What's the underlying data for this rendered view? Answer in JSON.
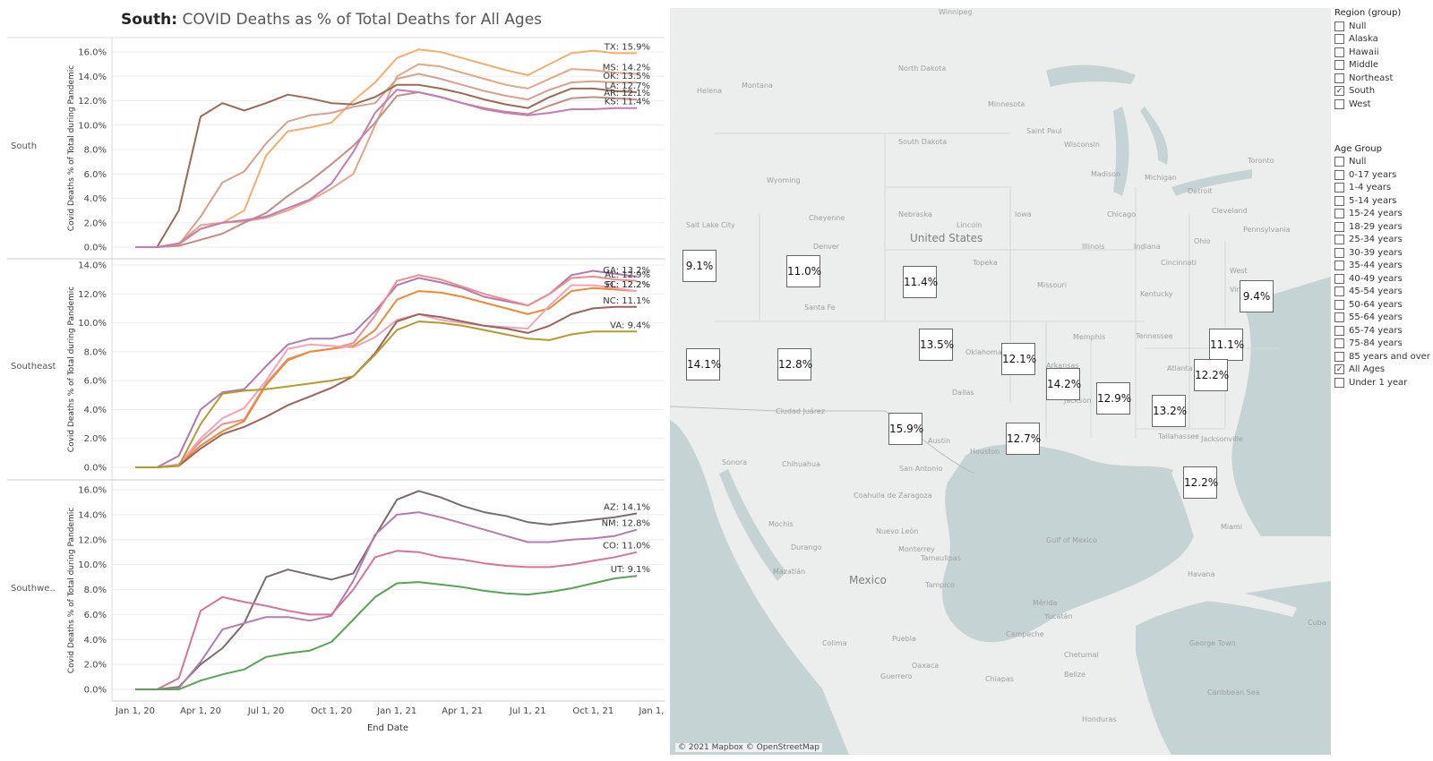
{
  "title": {
    "bold": "South:",
    "rest": "COVID Deaths as % of Total Deaths for All Ages"
  },
  "chart_data": [
    {
      "type": "line",
      "panel": "South",
      "ylabel": "Covid Deaths % of Total during Pandemic",
      "ylim": [
        0,
        16
      ],
      "yticks": [
        0,
        2,
        4,
        6,
        8,
        10,
        12,
        14,
        16
      ],
      "x": [
        "2020-01",
        "2020-02",
        "2020-03",
        "2020-04",
        "2020-05",
        "2020-06",
        "2020-07",
        "2020-08",
        "2020-09",
        "2020-10",
        "2020-11",
        "2020-12",
        "2021-01",
        "2021-02",
        "2021-03",
        "2021-04",
        "2021-05",
        "2021-06",
        "2021-07",
        "2021-08",
        "2021-09",
        "2021-10",
        "2021-11",
        "2021-12"
      ],
      "series": [
        {
          "name": "TX",
          "label": "TX: 15.9%",
          "color": "#f5ae6b",
          "values": [
            0,
            0,
            0.2,
            1.5,
            2.0,
            3.0,
            7.5,
            9.5,
            9.8,
            10.2,
            12.0,
            13.5,
            15.5,
            16.2,
            16.0,
            15.5,
            15.0,
            14.5,
            14.1,
            15.0,
            15.9,
            16.1,
            15.9,
            15.9
          ]
        },
        {
          "name": "MS",
          "label": "MS: 14.2%",
          "color": "#e8a585",
          "values": [
            0,
            0,
            0.3,
            1.8,
            2.0,
            2.1,
            2.4,
            3.0,
            3.8,
            4.8,
            6.0,
            10.0,
            14.0,
            15.0,
            14.8,
            14.3,
            13.8,
            13.3,
            13.0,
            13.8,
            14.6,
            14.5,
            14.3,
            14.2
          ]
        },
        {
          "name": "OK",
          "label": "OK: 13.5%",
          "color": "#d9a08d",
          "values": [
            0,
            0,
            0.2,
            2.5,
            5.3,
            6.2,
            8.5,
            10.3,
            10.8,
            11.0,
            11.5,
            11.8,
            13.8,
            14.2,
            13.8,
            13.3,
            12.8,
            12.4,
            12.1,
            12.9,
            13.5,
            13.6,
            13.5,
            13.5
          ]
        },
        {
          "name": "LA",
          "label": "LA: 12.7%",
          "color": "#9b6a55",
          "values": [
            0,
            0,
            3.0,
            10.7,
            11.8,
            11.2,
            11.8,
            12.5,
            12.2,
            11.8,
            11.7,
            12.3,
            13.3,
            13.3,
            13.0,
            12.6,
            12.1,
            11.7,
            11.4,
            12.3,
            13.0,
            13.0,
            12.8,
            12.7
          ]
        },
        {
          "name": "AR",
          "label": "AR: 12.1%",
          "color": "#c28d84",
          "values": [
            0,
            0,
            0.1,
            0.6,
            1.1,
            2.0,
            2.8,
            4.2,
            5.4,
            6.8,
            8.3,
            10.2,
            12.4,
            12.7,
            12.3,
            11.8,
            11.4,
            11.1,
            10.9,
            11.6,
            12.2,
            12.3,
            12.2,
            12.1
          ]
        },
        {
          "name": "KS",
          "label": "KS: 11.4%",
          "color": "#c77ab5",
          "values": [
            0,
            0,
            0.3,
            1.5,
            2.0,
            2.2,
            2.5,
            3.2,
            3.9,
            5.2,
            7.8,
            11.0,
            12.9,
            12.7,
            12.3,
            11.8,
            11.3,
            11.0,
            10.8,
            11.0,
            11.3,
            11.3,
            11.4,
            11.4
          ]
        }
      ]
    },
    {
      "type": "line",
      "panel": "Southeast",
      "ylabel": "Covid Deaths % of Total during Pandemic",
      "ylim": [
        0,
        14
      ],
      "yticks": [
        0,
        2,
        4,
        6,
        8,
        10,
        12,
        14
      ],
      "x": [
        "2020-01",
        "2020-02",
        "2020-03",
        "2020-04",
        "2020-05",
        "2020-06",
        "2020-07",
        "2020-08",
        "2020-09",
        "2020-10",
        "2020-11",
        "2020-12",
        "2021-01",
        "2021-02",
        "2021-03",
        "2021-04",
        "2021-05",
        "2021-06",
        "2021-07",
        "2021-08",
        "2021-09",
        "2021-10",
        "2021-11",
        "2021-12"
      ],
      "series": [
        {
          "name": "GA",
          "label": "GA: 13.2%",
          "color": "#b279b1",
          "values": [
            0,
            0,
            0.8,
            4.0,
            5.2,
            5.4,
            7.0,
            8.5,
            8.9,
            8.9,
            9.3,
            10.8,
            12.6,
            13.1,
            12.8,
            12.4,
            11.8,
            11.5,
            11.2,
            12.0,
            13.3,
            13.6,
            13.4,
            13.2
          ]
        },
        {
          "name": "AL",
          "label": "AL: 12.9%",
          "color": "#f28a8a",
          "values": [
            0,
            0,
            0.2,
            1.8,
            3.0,
            3.3,
            5.8,
            7.5,
            8.0,
            8.2,
            8.6,
            10.5,
            12.9,
            13.3,
            13.0,
            12.5,
            12.0,
            11.6,
            11.2,
            12.0,
            13.1,
            13.2,
            13.0,
            12.9
          ]
        },
        {
          "name": "SC",
          "label": "SC: 12.2%",
          "color": "#ee8a31",
          "values": [
            0,
            0,
            0.2,
            1.5,
            2.5,
            3.2,
            5.7,
            7.4,
            8.0,
            8.2,
            8.4,
            9.5,
            11.6,
            12.2,
            12.1,
            11.8,
            11.4,
            11.0,
            10.6,
            11.0,
            12.2,
            12.4,
            12.3,
            12.2
          ]
        },
        {
          "name": "FL",
          "label": "FL: 12.2%",
          "color": "#f3a3b8",
          "values": [
            0,
            0,
            0.2,
            2.0,
            3.4,
            4.1,
            6.0,
            8.2,
            8.5,
            8.4,
            8.3,
            9.0,
            10.2,
            10.6,
            10.2,
            10.0,
            9.8,
            9.7,
            9.6,
            11.2,
            12.6,
            12.6,
            12.4,
            12.2
          ]
        },
        {
          "name": "NC",
          "label": "NC: 11.1%",
          "color": "#9e6358",
          "values": [
            0,
            0,
            0.1,
            1.3,
            2.3,
            2.8,
            3.5,
            4.3,
            4.9,
            5.5,
            6.3,
            7.9,
            10.1,
            10.6,
            10.4,
            10.1,
            9.8,
            9.6,
            9.3,
            9.8,
            10.6,
            11.0,
            11.1,
            11.1
          ]
        },
        {
          "name": "VA",
          "label": "VA: 9.4%",
          "color": "#b59a2c",
          "values": [
            0,
            0,
            0.1,
            3.0,
            5.1,
            5.3,
            5.4,
            5.6,
            5.8,
            6.0,
            6.3,
            7.8,
            9.5,
            10.1,
            10.0,
            9.8,
            9.5,
            9.2,
            8.9,
            8.8,
            9.2,
            9.4,
            9.4,
            9.4
          ]
        }
      ]
    },
    {
      "type": "line",
      "panel": "Southwe..",
      "ylabel": "Covid Deaths % of Total during Pandemic",
      "ylim": [
        0,
        16
      ],
      "yticks": [
        0,
        2,
        4,
        6,
        8,
        10,
        12,
        14,
        16
      ],
      "xlabel": "End Date",
      "xticks": [
        "Jan 1, 20",
        "Apr 1, 20",
        "Jul 1, 20",
        "Oct 1, 20",
        "Jan 1, 21",
        "Apr 1, 21",
        "Jul 1, 21",
        "Oct 1, 21",
        "Jan 1, 22"
      ],
      "x": [
        "2020-01",
        "2020-02",
        "2020-03",
        "2020-04",
        "2020-05",
        "2020-06",
        "2020-07",
        "2020-08",
        "2020-09",
        "2020-10",
        "2020-11",
        "2020-12",
        "2021-01",
        "2021-02",
        "2021-03",
        "2021-04",
        "2021-05",
        "2021-06",
        "2021-07",
        "2021-08",
        "2021-09",
        "2021-10",
        "2021-11",
        "2021-12"
      ],
      "series": [
        {
          "name": "AZ",
          "label": "AZ: 14.1%",
          "color": "#7a6b6e",
          "values": [
            0,
            0,
            0.2,
            2.0,
            3.3,
            5.3,
            9.0,
            9.6,
            9.2,
            8.8,
            9.3,
            12.3,
            15.2,
            15.9,
            15.4,
            14.7,
            14.2,
            13.9,
            13.4,
            13.2,
            13.4,
            13.6,
            13.8,
            14.1
          ]
        },
        {
          "name": "NM",
          "label": "NM: 12.8%",
          "color": "#b57ab2",
          "values": [
            0,
            0,
            0.1,
            2.2,
            4.8,
            5.3,
            5.8,
            5.8,
            5.5,
            5.9,
            8.7,
            12.4,
            14.0,
            14.2,
            13.8,
            13.3,
            12.8,
            12.3,
            11.8,
            11.8,
            12.0,
            12.1,
            12.3,
            12.8
          ]
        },
        {
          "name": "CO",
          "label": "CO: 11.0%",
          "color": "#d97394",
          "values": [
            0,
            0,
            0.9,
            6.3,
            7.4,
            7.0,
            6.7,
            6.3,
            6.0,
            6.0,
            8.0,
            10.6,
            11.1,
            11.0,
            10.6,
            10.4,
            10.1,
            9.9,
            9.8,
            9.8,
            10.0,
            10.3,
            10.6,
            11.0
          ]
        },
        {
          "name": "UT",
          "label": "UT: 9.1%",
          "color": "#56a552",
          "values": [
            0,
            0,
            0.0,
            0.7,
            1.2,
            1.6,
            2.6,
            2.9,
            3.1,
            3.8,
            5.6,
            7.4,
            8.5,
            8.6,
            8.4,
            8.2,
            7.9,
            7.7,
            7.6,
            7.8,
            8.1,
            8.5,
            8.9,
            9.1
          ]
        }
      ]
    }
  ],
  "map": {
    "credit": "© 2021 Mapbox © OpenStreetMap",
    "labels": [
      "9.1%",
      "11.0%",
      "11.4%",
      "9.4%",
      "14.1%",
      "12.8%",
      "13.5%",
      "12.1%",
      "14.2%",
      "12.9%",
      "13.2%",
      "11.1%",
      "12.2%",
      "15.9%",
      "12.7%",
      "12.2%"
    ],
    "places": [
      "Winnipeg",
      "Helena",
      "Montana",
      "North Dakota",
      "Minnesota",
      "Saint Paul",
      "Wisconsin",
      "Michigan",
      "Toronto",
      "South Dakota",
      "Madison",
      "Wyoming",
      "Detroit",
      "Cleveland",
      "Chicago",
      "Ohio",
      "Salt Lake City",
      "Cheyenne",
      "Nebraska",
      "Lincoln",
      "Iowa",
      "Illinois",
      "Indiana",
      "Pennsylvania",
      "United States",
      "Denver",
      "Topeka",
      "Cincinnati",
      "West",
      "Missouri",
      "Kentucky",
      "Virginia",
      "Tennessee",
      "Santa Fe",
      "Oklahoma",
      "Memphis",
      "Atlanta",
      "Arkansas",
      "Dallas",
      "Jackson",
      "Ciudad Juárez",
      "Austin",
      "Houston",
      "Tallahassee",
      "Jacksonville",
      "San Antonio",
      "Sonora",
      "Chihuahua",
      "Coahuila de Zaragoza",
      "Nuevo León",
      "Mochis",
      "Durango",
      "Tamaulipas",
      "Mazatlán",
      "Mexico",
      "Gulf of Mexico",
      "Miami",
      "Havana",
      "Cuba",
      "Yucatán",
      "Campeche",
      "Mérida",
      "George Town",
      "Colima",
      "Puebla",
      "Oaxaca",
      "Guerrero",
      "Chiapas",
      "Chetumal",
      "Belize",
      "Honduras",
      "Caribbean Sea",
      "Monterrey",
      "Tampico"
    ]
  },
  "filters": {
    "region": {
      "title": "Region (group)",
      "items": [
        {
          "label": "Null",
          "checked": ""
        },
        {
          "label": "Alaska",
          "checked": ""
        },
        {
          "label": "Hawaii",
          "checked": ""
        },
        {
          "label": "Middle",
          "checked": ""
        },
        {
          "label": "Northeast",
          "checked": ""
        },
        {
          "label": "South",
          "checked": "✓"
        },
        {
          "label": "West",
          "checked": ""
        }
      ]
    },
    "age": {
      "title": "Age Group",
      "items": [
        {
          "label": "Null",
          "checked": ""
        },
        {
          "label": "0-17 years",
          "checked": ""
        },
        {
          "label": "1-4 years",
          "checked": ""
        },
        {
          "label": "5-14 years",
          "checked": ""
        },
        {
          "label": "15-24 years",
          "checked": ""
        },
        {
          "label": "18-29 years",
          "checked": ""
        },
        {
          "label": "25-34 years",
          "checked": ""
        },
        {
          "label": "30-39 years",
          "checked": ""
        },
        {
          "label": "35-44 years",
          "checked": ""
        },
        {
          "label": "40-49 years",
          "checked": ""
        },
        {
          "label": "45-54 years",
          "checked": ""
        },
        {
          "label": "50-64 years",
          "checked": ""
        },
        {
          "label": "55-64 years",
          "checked": ""
        },
        {
          "label": "65-74 years",
          "checked": ""
        },
        {
          "label": "75-84 years",
          "checked": ""
        },
        {
          "label": "85 years and over",
          "checked": ""
        },
        {
          "label": "All Ages",
          "checked": "✓"
        },
        {
          "label": "Under 1 year",
          "checked": ""
        }
      ]
    }
  }
}
